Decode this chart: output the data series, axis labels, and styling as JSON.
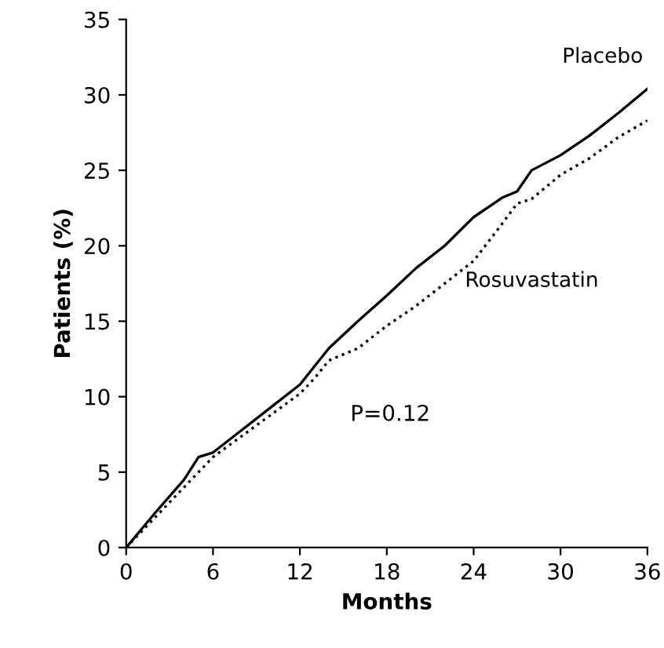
{
  "chart_data": {
    "type": "line",
    "xlabel": "Months",
    "ylabel": "Patients (%)",
    "xlim": [
      0,
      36
    ],
    "ylim": [
      0,
      35
    ],
    "xticks": [
      0,
      6,
      12,
      18,
      24,
      30,
      36
    ],
    "yticks": [
      0,
      5,
      10,
      15,
      20,
      25,
      30,
      35
    ],
    "grid": false,
    "legend": false,
    "marker": "none",
    "annotations": [
      "P=0.12"
    ],
    "series": [
      {
        "name": "Placebo",
        "color": "#000000",
        "line_style": "solid",
        "x": [
          0,
          2,
          4,
          5,
          6,
          8,
          10,
          12,
          14,
          16,
          18,
          20,
          22,
          24,
          26,
          27,
          28,
          30,
          32,
          34,
          36
        ],
        "values": [
          0,
          2.3,
          4.5,
          6.0,
          6.3,
          7.8,
          9.3,
          10.8,
          13.2,
          15,
          16.7,
          18.5,
          20,
          21.9,
          23.2,
          23.6,
          25,
          26,
          27.3,
          28.8,
          30.4
        ]
      },
      {
        "name": "Rosuvastatin",
        "color": "#000000",
        "line_style": "dotted",
        "x": [
          0,
          2,
          4,
          6,
          8,
          10,
          12,
          13,
          14,
          16,
          18,
          20,
          22,
          24,
          26,
          27,
          28,
          30,
          32,
          34,
          36
        ],
        "values": [
          0,
          2,
          4,
          6,
          7.4,
          8.8,
          10.2,
          11.2,
          12.4,
          13.2,
          14.7,
          16,
          17.5,
          19,
          21.5,
          22.8,
          23.1,
          24.7,
          25.8,
          27.2,
          28.3
        ]
      }
    ]
  }
}
